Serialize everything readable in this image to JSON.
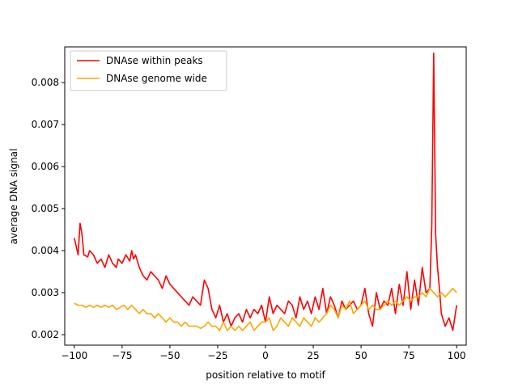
{
  "chart_data": {
    "type": "line",
    "title": "",
    "xlabel": "position relative to motif",
    "ylabel": "average DNA signal",
    "xlim": [
      -105,
      105
    ],
    "ylim": [
      0.00175,
      0.00885
    ],
    "xticks": [
      -100,
      -75,
      -50,
      -25,
      0,
      25,
      50,
      75,
      100
    ],
    "xtick_labels": [
      "−100",
      "−75",
      "−50",
      "−25",
      "0",
      "25",
      "50",
      "75",
      "100"
    ],
    "yticks": [
      0.002,
      0.003,
      0.004,
      0.005,
      0.006,
      0.007,
      0.008
    ],
    "ytick_labels": [
      "0.002",
      "0.003",
      "0.004",
      "0.005",
      "0.006",
      "0.007",
      "0.008"
    ],
    "grid": false,
    "legend_position": "top-left",
    "series": [
      {
        "name": "DNAse within peaks",
        "color": "#ff0000",
        "x": [
          -100,
          -98,
          -97,
          -96,
          -95,
          -93,
          -92,
          -90,
          -88,
          -86,
          -84,
          -82,
          -80,
          -78,
          -77,
          -75,
          -73,
          -71,
          -70,
          -69,
          -68,
          -66,
          -64,
          -62,
          -60,
          -58,
          -56,
          -54,
          -52,
          -50,
          -48,
          -46,
          -44,
          -42,
          -40,
          -38,
          -36,
          -34,
          -32,
          -30,
          -28,
          -26,
          -24,
          -22,
          -20,
          -18,
          -16,
          -14,
          -12,
          -10,
          -8,
          -6,
          -4,
          -2,
          0,
          2,
          4,
          6,
          8,
          10,
          12,
          14,
          16,
          18,
          20,
          22,
          24,
          26,
          28,
          30,
          32,
          34,
          36,
          38,
          40,
          42,
          44,
          46,
          48,
          50,
          52,
          54,
          56,
          58,
          60,
          62,
          64,
          66,
          68,
          70,
          72,
          74,
          76,
          78,
          80,
          82,
          84,
          86,
          87,
          88,
          89,
          90,
          91,
          92,
          94,
          96,
          98,
          100
        ],
        "y": [
          0.0043,
          0.0039,
          0.00465,
          0.0044,
          0.0039,
          0.00385,
          0.004,
          0.0039,
          0.0037,
          0.0038,
          0.0036,
          0.0039,
          0.0037,
          0.0036,
          0.0038,
          0.0037,
          0.0039,
          0.00375,
          0.004,
          0.0038,
          0.0039,
          0.0036,
          0.0034,
          0.0033,
          0.0035,
          0.0034,
          0.0033,
          0.0031,
          0.0034,
          0.0032,
          0.0031,
          0.003,
          0.0029,
          0.0028,
          0.0027,
          0.0029,
          0.0028,
          0.0027,
          0.0033,
          0.0031,
          0.0026,
          0.0024,
          0.0027,
          0.0023,
          0.0025,
          0.0022,
          0.0024,
          0.0025,
          0.0023,
          0.0026,
          0.0024,
          0.0026,
          0.0025,
          0.0027,
          0.0023,
          0.0029,
          0.0025,
          0.0027,
          0.0026,
          0.0025,
          0.0028,
          0.0027,
          0.0024,
          0.0029,
          0.0026,
          0.0028,
          0.0025,
          0.0029,
          0.0026,
          0.0031,
          0.0025,
          0.0029,
          0.0027,
          0.0024,
          0.0028,
          0.0026,
          0.0027,
          0.0028,
          0.0026,
          0.0027,
          0.0031,
          0.0025,
          0.0022,
          0.003,
          0.0026,
          0.0028,
          0.0027,
          0.0031,
          0.0025,
          0.0032,
          0.0027,
          0.0035,
          0.0026,
          0.0033,
          0.0027,
          0.0036,
          0.003,
          0.0031,
          0.0046,
          0.0087,
          0.0044,
          0.0036,
          0.0031,
          0.0025,
          0.0022,
          0.0024,
          0.0021,
          0.0027
        ]
      },
      {
        "name": "DNAse genome wide",
        "color": "#ffa500",
        "x": [
          -100,
          -98,
          -96,
          -94,
          -92,
          -90,
          -88,
          -86,
          -84,
          -82,
          -80,
          -78,
          -76,
          -74,
          -72,
          -70,
          -68,
          -66,
          -64,
          -62,
          -60,
          -58,
          -56,
          -54,
          -52,
          -50,
          -48,
          -46,
          -44,
          -42,
          -40,
          -38,
          -36,
          -34,
          -32,
          -30,
          -28,
          -26,
          -24,
          -22,
          -20,
          -18,
          -16,
          -14,
          -12,
          -10,
          -8,
          -6,
          -4,
          -2,
          0,
          2,
          4,
          6,
          8,
          10,
          12,
          14,
          16,
          18,
          20,
          22,
          24,
          26,
          28,
          30,
          32,
          34,
          36,
          38,
          40,
          42,
          44,
          46,
          48,
          50,
          52,
          54,
          56,
          58,
          60,
          62,
          64,
          66,
          68,
          70,
          72,
          74,
          76,
          78,
          80,
          82,
          84,
          86,
          88,
          90,
          92,
          94,
          96,
          98,
          100
        ],
        "y": [
          0.00275,
          0.0027,
          0.0027,
          0.00265,
          0.0027,
          0.00265,
          0.0027,
          0.00265,
          0.0027,
          0.00265,
          0.0027,
          0.0026,
          0.00265,
          0.0027,
          0.0026,
          0.0027,
          0.0026,
          0.0025,
          0.0026,
          0.0025,
          0.0025,
          0.0024,
          0.0025,
          0.0024,
          0.0023,
          0.0024,
          0.0023,
          0.0023,
          0.0022,
          0.0023,
          0.0022,
          0.0022,
          0.0022,
          0.00215,
          0.0022,
          0.0023,
          0.0022,
          0.0022,
          0.0021,
          0.0023,
          0.0021,
          0.0022,
          0.0021,
          0.0022,
          0.0021,
          0.0022,
          0.0023,
          0.0021,
          0.0022,
          0.0023,
          0.0023,
          0.0024,
          0.0021,
          0.0022,
          0.0024,
          0.0023,
          0.0022,
          0.0024,
          0.0023,
          0.0022,
          0.0024,
          0.0023,
          0.0022,
          0.0024,
          0.0023,
          0.0024,
          0.0025,
          0.0027,
          0.0026,
          0.0024,
          0.0027,
          0.0026,
          0.0028,
          0.0025,
          0.0026,
          0.0027,
          0.0028,
          0.0026,
          0.0027,
          0.0026,
          0.0026,
          0.0027,
          0.0028,
          0.0027,
          0.0028,
          0.0027,
          0.0028,
          0.0029,
          0.0028,
          0.0029,
          0.0029,
          0.003,
          0.0029,
          0.0031,
          0.003,
          0.0029,
          0.003,
          0.0029,
          0.003,
          0.0031,
          0.003
        ]
      }
    ]
  }
}
